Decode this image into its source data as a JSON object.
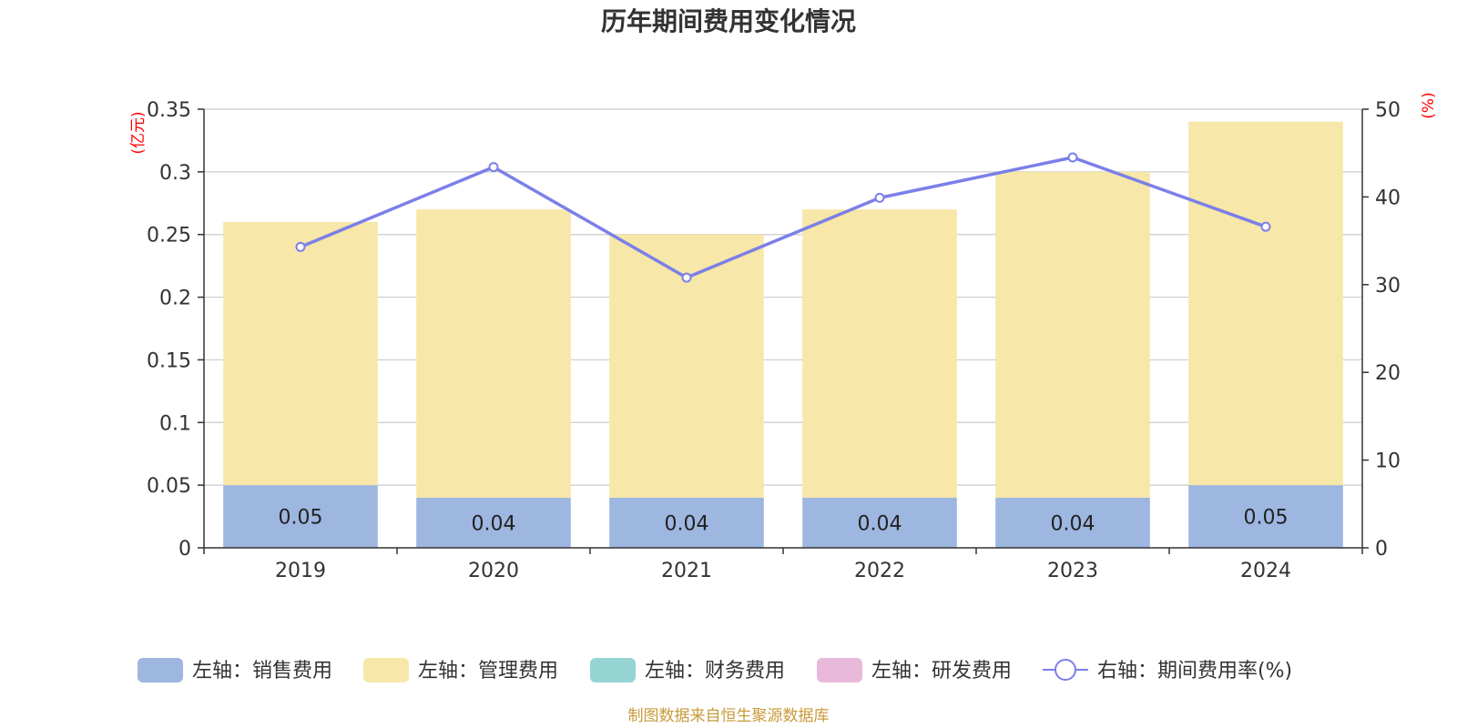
{
  "chart_data": {
    "type": "bar",
    "title": "历年期间费用变化情况",
    "categories": [
      "2019",
      "2020",
      "2021",
      "2022",
      "2023",
      "2024"
    ],
    "left_axis": {
      "unit_label": "(亿元)",
      "ylim": [
        0,
        0.35
      ],
      "ticks": [
        "0",
        "0.05",
        "0.1",
        "0.15",
        "0.2",
        "0.25",
        "0.3",
        "0.35"
      ]
    },
    "right_axis": {
      "unit_label": "(%)",
      "ylim": [
        0,
        50
      ],
      "ticks": [
        "0",
        "10",
        "20",
        "30",
        "40",
        "50"
      ]
    },
    "stacked": true,
    "series": [
      {
        "name": "左轴：销售费用",
        "type": "bar",
        "axis": "left",
        "color": "#9db7e0",
        "values": [
          0.05,
          0.04,
          0.04,
          0.04,
          0.04,
          0.05
        ],
        "labels": [
          "0.05",
          "0.04",
          "0.04",
          "0.04",
          "0.04",
          "0.05"
        ]
      },
      {
        "name": "左轴：管理费用",
        "type": "bar",
        "axis": "left",
        "color": "#f7e7a8",
        "values": [
          0.21,
          0.23,
          0.21,
          0.23,
          0.26,
          0.29
        ]
      },
      {
        "name": "左轴：财务费用",
        "type": "bar",
        "axis": "left",
        "color": "#96d4d4",
        "values": [
          0,
          0,
          0,
          0,
          0,
          0
        ]
      },
      {
        "name": "左轴：研发费用",
        "type": "bar",
        "axis": "left",
        "color": "#e8b9da",
        "values": [
          0,
          0,
          0,
          0,
          0,
          0
        ]
      },
      {
        "name": "右轴：期间费用率(%)",
        "type": "line",
        "axis": "right",
        "color": "#7b7fe8",
        "values": [
          34.3,
          43.4,
          30.8,
          39.9,
          44.5,
          36.6
        ]
      }
    ],
    "grid": true,
    "legend_position": "bottom"
  },
  "source_note": "制图数据来自恒生聚源数据库"
}
